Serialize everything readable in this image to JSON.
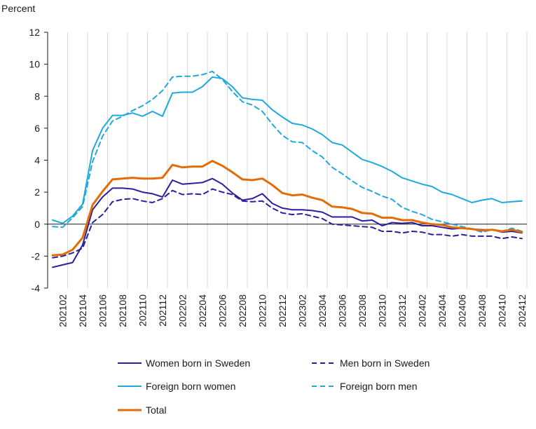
{
  "chart_data": {
    "type": "line",
    "ylabel": "Percent",
    "ylim": [
      -4,
      12
    ],
    "yticks": [
      -4,
      -2,
      0,
      2,
      4,
      6,
      8,
      10,
      12
    ],
    "grid": "vertical",
    "legend_position": "bottom",
    "x_start_period": "202101",
    "x_tick_labels": [
      "202102",
      "202104",
      "202106",
      "202108",
      "202110",
      "202112",
      "202202",
      "202204",
      "202206",
      "202208",
      "202210",
      "202212",
      "202302",
      "202304",
      "202306",
      "202308",
      "202310",
      "202312",
      "202402",
      "202404",
      "202406",
      "202408",
      "202410",
      "202412"
    ],
    "series": [
      {
        "name": "Women born in Sweden",
        "color": "#2b1f9f",
        "dash": "solid",
        "width": 2,
        "values": [
          -2.7,
          -2.55,
          -2.4,
          -1.3,
          0.9,
          1.7,
          2.25,
          2.25,
          2.2,
          2.0,
          1.9,
          1.7,
          2.75,
          2.5,
          2.55,
          2.6,
          2.85,
          2.5,
          1.95,
          1.5,
          1.6,
          1.9,
          1.3,
          1.0,
          0.9,
          0.9,
          0.85,
          0.75,
          0.45,
          0.45,
          0.45,
          0.2,
          0.25,
          -0.1,
          0.1,
          0.05,
          0.1,
          -0.1,
          -0.1,
          -0.2,
          -0.3,
          -0.25,
          -0.3,
          -0.35,
          -0.35,
          -0.5,
          -0.45,
          -0.55
        ]
      },
      {
        "name": "Men born in Sweden",
        "color": "#2b1f9f",
        "dash": "dashed",
        "width": 2,
        "values": [
          -2.1,
          -2.0,
          -1.8,
          -1.5,
          0.1,
          0.6,
          1.4,
          1.55,
          1.6,
          1.45,
          1.35,
          1.6,
          2.1,
          1.85,
          1.9,
          1.85,
          2.2,
          2.0,
          1.85,
          1.45,
          1.4,
          1.45,
          1.0,
          0.7,
          0.6,
          0.65,
          0.5,
          0.35,
          0.0,
          -0.05,
          -0.1,
          -0.15,
          -0.2,
          -0.45,
          -0.45,
          -0.55,
          -0.45,
          -0.5,
          -0.65,
          -0.65,
          -0.75,
          -0.65,
          -0.75,
          -0.75,
          -0.75,
          -0.9,
          -0.8,
          -0.9
        ]
      },
      {
        "name": "Foreign born women",
        "color": "#1fa9dc",
        "dash": "solid",
        "width": 2,
        "values": [
          0.25,
          0.05,
          0.5,
          1.25,
          4.6,
          6.0,
          6.8,
          6.8,
          6.95,
          6.75,
          7.05,
          6.75,
          8.2,
          8.25,
          8.25,
          8.6,
          9.2,
          9.1,
          8.6,
          7.9,
          7.8,
          7.75,
          7.15,
          6.7,
          6.3,
          6.2,
          5.95,
          5.6,
          5.1,
          4.95,
          4.5,
          4.05,
          3.85,
          3.6,
          3.3,
          2.9,
          2.7,
          2.5,
          2.35,
          2.0,
          1.85,
          1.6,
          1.35,
          1.5,
          1.6,
          1.35,
          1.4,
          1.45
        ]
      },
      {
        "name": "Foreign born men",
        "color": "#1fa9dc",
        "dash": "dashed",
        "width": 2,
        "values": [
          -0.15,
          -0.2,
          0.4,
          1.1,
          3.9,
          5.5,
          6.45,
          6.75,
          7.1,
          7.4,
          7.8,
          8.35,
          9.2,
          9.25,
          9.25,
          9.35,
          9.55,
          9.05,
          8.3,
          7.65,
          7.45,
          7.05,
          6.25,
          5.55,
          5.15,
          5.1,
          4.6,
          4.2,
          3.55,
          3.15,
          2.7,
          2.3,
          2.05,
          1.75,
          1.55,
          1.05,
          0.8,
          0.6,
          0.3,
          0.15,
          0.0,
          -0.15,
          -0.3,
          -0.5,
          -0.35,
          -0.45,
          -0.25,
          -0.45
        ]
      },
      {
        "name": "Total",
        "color": "#e36c0a",
        "dash": "solid",
        "width": 3,
        "values": [
          -1.95,
          -1.9,
          -1.6,
          -0.85,
          1.2,
          2.05,
          2.8,
          2.85,
          2.9,
          2.85,
          2.85,
          2.9,
          3.7,
          3.55,
          3.6,
          3.6,
          3.95,
          3.65,
          3.25,
          2.8,
          2.75,
          2.85,
          2.45,
          1.95,
          1.8,
          1.85,
          1.65,
          1.5,
          1.1,
          1.05,
          0.95,
          0.7,
          0.65,
          0.4,
          0.4,
          0.25,
          0.25,
          0.1,
          0.0,
          -0.05,
          -0.2,
          -0.25,
          -0.3,
          -0.4,
          -0.35,
          -0.45,
          -0.35,
          -0.5
        ]
      }
    ]
  }
}
